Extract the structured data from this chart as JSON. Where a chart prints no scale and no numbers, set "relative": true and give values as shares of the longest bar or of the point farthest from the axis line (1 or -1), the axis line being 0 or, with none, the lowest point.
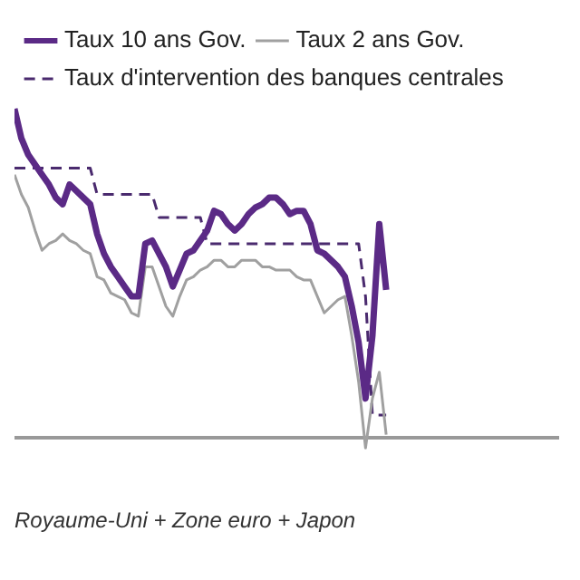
{
  "chart_data": {
    "type": "line",
    "relative": true,
    "legend": "top left",
    "grid": false,
    "marker": "none",
    "annotations": [
      "Royaume-Uni + Zone euro + Japon"
    ],
    "categories": [
      null,
      null,
      null,
      null,
      null,
      null,
      null,
      null,
      null,
      null,
      null,
      null,
      null,
      null,
      null,
      null,
      null,
      null,
      null,
      null,
      null,
      null,
      null,
      null,
      null,
      null,
      null,
      null,
      null,
      null,
      null,
      null,
      null,
      null,
      null,
      null,
      null,
      null,
      null,
      null,
      null,
      null,
      null,
      null,
      null,
      null,
      null,
      null,
      null,
      null,
      null,
      null,
      null,
      null,
      null,
      null,
      null,
      null,
      null,
      null,
      null,
      null,
      null,
      null,
      null,
      null,
      null,
      null,
      null,
      null,
      null,
      null,
      null,
      null,
      null,
      null,
      null,
      null,
      null,
      null
    ],
    "series": [
      {
        "name": "Taux 10 ans Gov.",
        "color": "#5b2a86",
        "line_style": "solid",
        "values": [
          1.0,
          0.91,
          0.86,
          0.83,
          0.8,
          0.77,
          0.73,
          0.71,
          0.77,
          0.75,
          0.73,
          0.71,
          0.62,
          0.56,
          0.52,
          0.49,
          0.46,
          0.43,
          0.43,
          0.59,
          0.6,
          0.56,
          0.52,
          0.46,
          0.51,
          0.56,
          0.57,
          0.6,
          0.63,
          0.69,
          0.68,
          0.65,
          0.63,
          0.65,
          0.68,
          0.7,
          0.71,
          0.73,
          0.73,
          0.71,
          0.68,
          0.69,
          0.69,
          0.65,
          0.57,
          0.56,
          0.54,
          0.52,
          0.49,
          0.4,
          0.29,
          0.12,
          0.31,
          0.65,
          0.45,
          null,
          null,
          null,
          null,
          null,
          null,
          null,
          null,
          null,
          null,
          null,
          null,
          null,
          null,
          null,
          null,
          null,
          null,
          null,
          null,
          null,
          null,
          null,
          null,
          null
        ]
      },
      {
        "name": "Taux 2 ans Gov.",
        "color": "#a0a0a0",
        "line_style": "solid",
        "values": [
          0.8,
          0.74,
          0.7,
          0.63,
          0.57,
          0.59,
          0.6,
          0.62,
          0.6,
          0.59,
          0.57,
          0.56,
          0.49,
          0.48,
          0.44,
          0.43,
          0.42,
          0.38,
          0.37,
          0.52,
          0.52,
          0.46,
          0.4,
          0.37,
          0.43,
          0.48,
          0.49,
          0.51,
          0.52,
          0.54,
          0.54,
          0.52,
          0.52,
          0.54,
          0.54,
          0.54,
          0.52,
          0.52,
          0.51,
          0.51,
          0.51,
          0.49,
          0.48,
          0.48,
          0.43,
          0.38,
          0.4,
          0.42,
          0.43,
          0.31,
          0.17,
          -0.03,
          0.12,
          0.2,
          0.01,
          null,
          null,
          null,
          null,
          null,
          null,
          null,
          null,
          null,
          null,
          null,
          null,
          null,
          null,
          null,
          null,
          null,
          null,
          null,
          null,
          null,
          null,
          null,
          null,
          null
        ]
      },
      {
        "name": "Taux d'intervention des banques centrales",
        "color": "#4a2a6e",
        "line_style": "dashed",
        "values": [
          0.82,
          0.82,
          0.82,
          0.82,
          0.82,
          0.82,
          0.82,
          0.82,
          0.82,
          0.82,
          0.82,
          0.82,
          0.74,
          0.74,
          0.74,
          0.74,
          0.74,
          0.74,
          0.74,
          0.74,
          0.74,
          0.67,
          0.67,
          0.67,
          0.67,
          0.67,
          0.67,
          0.67,
          0.59,
          0.59,
          0.59,
          0.59,
          0.59,
          0.59,
          0.59,
          0.59,
          0.59,
          0.59,
          0.59,
          0.59,
          0.59,
          0.59,
          0.59,
          0.59,
          0.59,
          0.59,
          0.59,
          0.59,
          0.59,
          0.59,
          0.59,
          0.43,
          0.07,
          0.07,
          0.07,
          null,
          null,
          null,
          null,
          null,
          null,
          null,
          null,
          null,
          null,
          null,
          null,
          null,
          null,
          null,
          null,
          null,
          null,
          null,
          null,
          null,
          null,
          null,
          null,
          null
        ]
      }
    ]
  }
}
